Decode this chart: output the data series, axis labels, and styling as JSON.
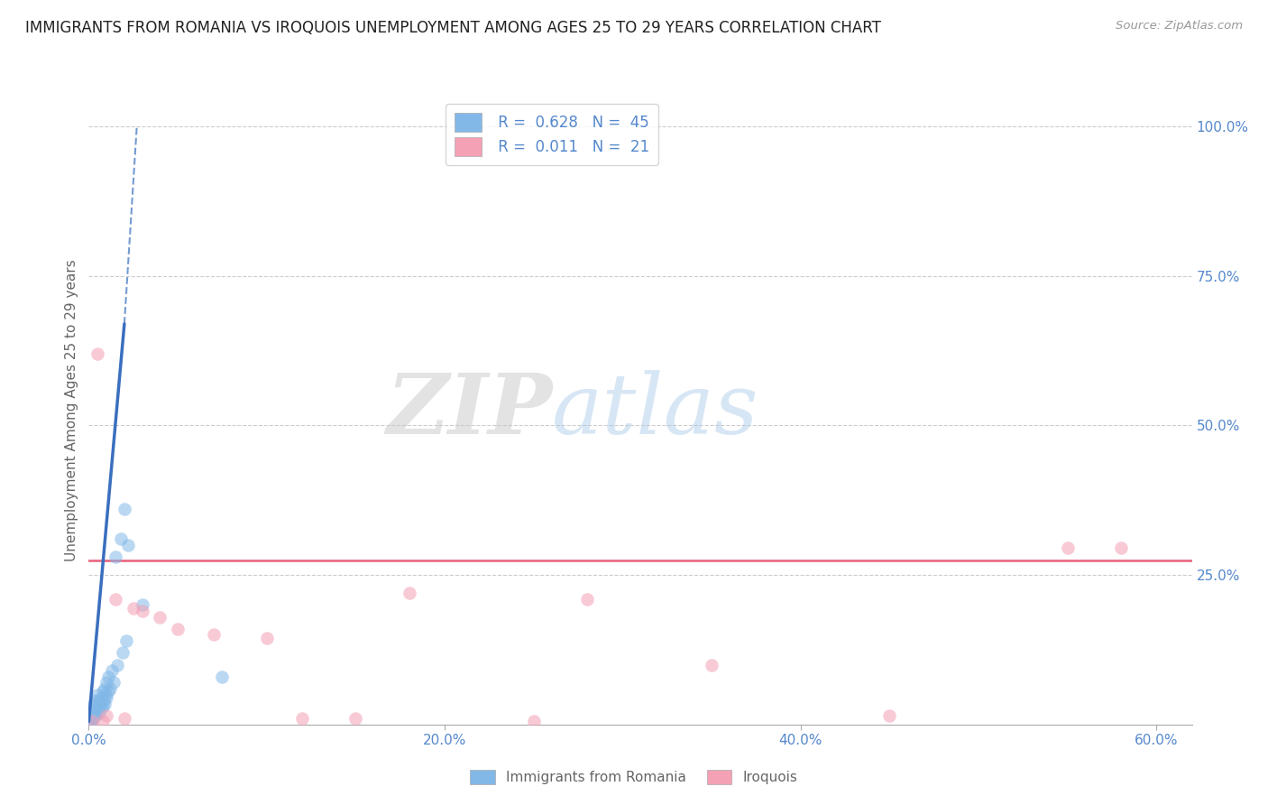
{
  "title": "IMMIGRANTS FROM ROMANIA VS IROQUOIS UNEMPLOYMENT AMONG AGES 25 TO 29 YEARS CORRELATION CHART",
  "source": "Source: ZipAtlas.com",
  "ylabel": "Unemployment Among Ages 25 to 29 years",
  "xlabel_ticks": [
    "0.0%",
    "20.0%",
    "40.0%",
    "60.0%"
  ],
  "xlabel_vals": [
    0.0,
    20.0,
    40.0,
    60.0
  ],
  "ytick_vals": [
    0.0,
    25.0,
    50.0,
    75.0,
    100.0
  ],
  "ytick_labels": [
    "",
    "25.0%",
    "50.0%",
    "75.0%",
    "100.0%"
  ],
  "xlim": [
    0,
    62
  ],
  "ylim": [
    0,
    105
  ],
  "watermark_zip": "ZIP",
  "watermark_atlas": "atlas",
  "legend_blue_label": "Immigrants from Romania",
  "legend_pink_label": "Iroquois",
  "blue_R": "0.628",
  "blue_N": "45",
  "pink_R": "0.011",
  "pink_N": "21",
  "blue_color": "#82b8e8",
  "pink_color": "#f4a0b5",
  "blue_line_color": "#3a6fbf",
  "pink_line_color": "#e8607a",
  "title_color": "#222222",
  "axis_label_color": "#666666",
  "tick_color": "#5588cc",
  "grid_color": "#cccccc",
  "blue_scatter_x": [
    0.1,
    0.15,
    0.2,
    0.2,
    0.25,
    0.3,
    0.3,
    0.35,
    0.4,
    0.4,
    0.45,
    0.5,
    0.5,
    0.55,
    0.6,
    0.6,
    0.65,
    0.7,
    0.75,
    0.8,
    0.8,
    0.85,
    0.9,
    0.9,
    0.95,
    1.0,
    1.0,
    1.1,
    1.1,
    1.2,
    1.3,
    1.4,
    1.5,
    1.6,
    1.8,
    1.9,
    2.0,
    2.1,
    2.2,
    3.0,
    0.05,
    0.08,
    0.12,
    0.18,
    7.5
  ],
  "blue_scatter_y": [
    1.5,
    2.0,
    1.0,
    2.5,
    3.0,
    1.5,
    3.5,
    2.0,
    1.5,
    4.0,
    2.5,
    2.0,
    5.0,
    3.0,
    2.0,
    4.0,
    3.5,
    3.0,
    4.5,
    3.0,
    5.5,
    4.0,
    6.0,
    3.5,
    5.0,
    4.5,
    7.0,
    5.5,
    8.0,
    6.0,
    9.0,
    7.0,
    28.0,
    10.0,
    31.0,
    12.0,
    36.0,
    14.0,
    30.0,
    20.0,
    1.0,
    0.5,
    0.5,
    0.5,
    8.0
  ],
  "pink_scatter_x": [
    0.2,
    0.5,
    0.8,
    1.0,
    1.5,
    2.0,
    2.5,
    3.0,
    4.0,
    5.0,
    7.0,
    10.0,
    12.0,
    15.0,
    18.0,
    25.0,
    28.0,
    35.0,
    45.0,
    55.0,
    58.0
  ],
  "pink_scatter_y": [
    0.5,
    62.0,
    0.5,
    1.5,
    21.0,
    1.0,
    19.5,
    19.0,
    18.0,
    16.0,
    15.0,
    14.5,
    1.0,
    1.0,
    22.0,
    0.5,
    21.0,
    10.0,
    1.5,
    29.5,
    29.5
  ],
  "blue_line_x0": 0.0,
  "blue_line_y0": 0.5,
  "blue_line_x1": 2.0,
  "blue_line_y1": 67.0,
  "blue_dash_x0": 2.0,
  "blue_dash_y0": 67.0,
  "blue_dash_x1": 2.7,
  "blue_dash_y1": 100.0,
  "pink_line_y": 27.5,
  "figsize": [
    14.06,
    8.92
  ],
  "dpi": 100
}
